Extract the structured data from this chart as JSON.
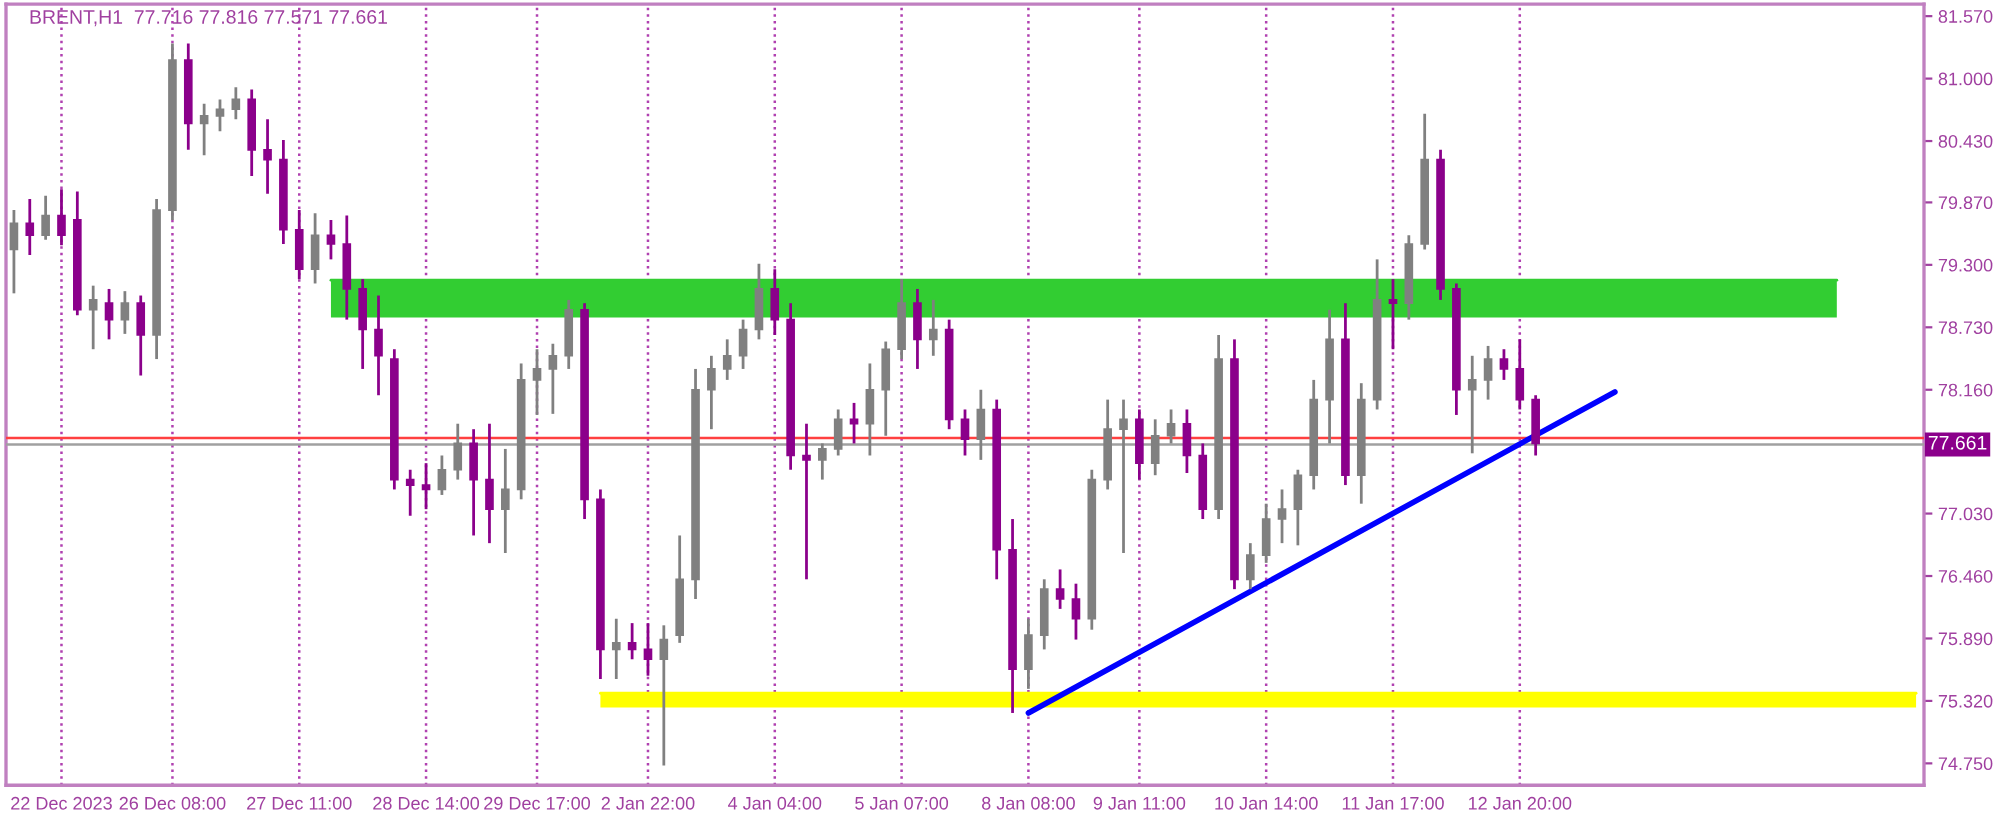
{
  "chart_data": {
    "type": "candlestick",
    "title": "BRENT,H1  77.716 77.816 77.571 77.661",
    "categories": [
      null,
      null,
      null,
      "22 Dec 2023",
      null,
      null,
      null,
      null,
      null,
      null,
      "26 Dec 08:00",
      null,
      null,
      null,
      null,
      null,
      null,
      null,
      "27 Dec 11:00",
      null,
      null,
      null,
      null,
      null,
      null,
      null,
      "28 Dec 14:00",
      null,
      null,
      null,
      null,
      null,
      null,
      "29 Dec 17:00",
      null,
      null,
      null,
      null,
      null,
      null,
      "2 Jan 22:00",
      null,
      null,
      null,
      null,
      null,
      null,
      null,
      "4 Jan 04:00",
      null,
      null,
      null,
      null,
      null,
      null,
      null,
      "5 Jan 07:00",
      null,
      null,
      null,
      null,
      null,
      null,
      null,
      "8 Jan 08:00",
      null,
      null,
      null,
      null,
      null,
      null,
      "9 Jan 11:00",
      null,
      null,
      null,
      null,
      null,
      null,
      null,
      "10 Jan 14:00",
      null,
      null,
      null,
      null,
      null,
      null,
      null,
      "11 Jan 17:00",
      null,
      null,
      null,
      null,
      null,
      null,
      null,
      "12 Jan 20:00",
      null,
      null,
      null,
      null,
      null,
      null,
      null,
      null,
      null,
      null,
      null,
      null,
      null,
      null,
      null,
      null,
      null,
      null,
      null,
      null,
      null,
      null,
      null,
      null,
      null
    ],
    "ohlc": [
      [
        79.44,
        79.8,
        79.04,
        79.68
      ],
      [
        79.68,
        79.9,
        79.39,
        79.57
      ],
      [
        79.57,
        79.93,
        79.53,
        79.75
      ],
      [
        79.75,
        79.99,
        79.48,
        79.57
      ],
      [
        79.71,
        79.97,
        78.84,
        78.89
      ],
      [
        78.89,
        79.11,
        78.53,
        78.98
      ],
      [
        78.95,
        79.08,
        78.62,
        78.8
      ],
      [
        78.8,
        79.06,
        78.67,
        78.95
      ],
      [
        78.95,
        79.02,
        78.29,
        78.66
      ],
      [
        78.66,
        79.9,
        78.44,
        79.8
      ],
      [
        79.8,
        81.32,
        79.71,
        81.17
      ],
      [
        81.17,
        81.32,
        80.35,
        80.59
      ],
      [
        80.59,
        80.77,
        80.3,
        80.66
      ],
      [
        80.66,
        80.81,
        80.52,
        80.72
      ],
      [
        80.72,
        80.92,
        80.63,
        80.81
      ],
      [
        80.81,
        80.9,
        80.11,
        80.35
      ],
      [
        80.35,
        80.63,
        79.95,
        80.26
      ],
      [
        80.26,
        80.44,
        79.49,
        79.62
      ],
      [
        79.62,
        79.8,
        79.17,
        79.26
      ],
      [
        79.26,
        79.77,
        79.13,
        79.57
      ],
      [
        79.57,
        79.71,
        79.35,
        79.49
      ],
      [
        79.49,
        79.75,
        78.8,
        79.08
      ],
      [
        79.08,
        79.17,
        78.35,
        78.71
      ],
      [
        78.71,
        79.02,
        78.11,
        78.47
      ],
      [
        78.44,
        78.53,
        77.25,
        77.34
      ],
      [
        77.34,
        77.43,
        77.01,
        77.29
      ],
      [
        77.29,
        77.49,
        77.07,
        77.25
      ],
      [
        77.25,
        77.56,
        77.2,
        77.43
      ],
      [
        77.43,
        77.85,
        77.34,
        77.67
      ],
      [
        77.67,
        77.8,
        76.83,
        77.34
      ],
      [
        77.34,
        77.85,
        76.76,
        77.07
      ],
      [
        77.07,
        77.62,
        76.67,
        77.25
      ],
      [
        77.25,
        78.4,
        77.16,
        78.25
      ],
      [
        78.25,
        78.53,
        77.93,
        78.35
      ],
      [
        78.35,
        78.58,
        77.94,
        78.47
      ],
      [
        78.47,
        78.98,
        78.35,
        78.89
      ],
      [
        78.89,
        78.95,
        76.98,
        77.16
      ],
      [
        77.16,
        77.25,
        75.52,
        75.79
      ],
      [
        75.79,
        76.07,
        75.52,
        75.85
      ],
      [
        75.85,
        76.03,
        75.7,
        75.79
      ],
      [
        75.79,
        76.03,
        75.55,
        75.7
      ],
      [
        75.7,
        76.01,
        74.73,
        75.88
      ],
      [
        75.92,
        76.83,
        75.85,
        76.43
      ],
      [
        76.43,
        78.35,
        76.25,
        78.16
      ],
      [
        78.16,
        78.47,
        77.8,
        78.35
      ],
      [
        78.35,
        78.62,
        78.25,
        78.47
      ],
      [
        78.47,
        78.8,
        78.35,
        78.71
      ],
      [
        78.71,
        79.31,
        78.62,
        79.08
      ],
      [
        79.08,
        79.26,
        78.66,
        78.8
      ],
      [
        78.8,
        78.95,
        77.43,
        77.56
      ],
      [
        77.56,
        77.85,
        76.43,
        77.52
      ],
      [
        77.52,
        77.67,
        77.34,
        77.62
      ],
      [
        77.62,
        77.98,
        77.56,
        77.89
      ],
      [
        77.89,
        78.04,
        77.67,
        77.85
      ],
      [
        77.85,
        78.4,
        77.56,
        78.16
      ],
      [
        78.16,
        78.6,
        77.74,
        78.53
      ],
      [
        78.53,
        79.17,
        78.44,
        78.95
      ],
      [
        78.95,
        79.08,
        78.35,
        78.62
      ],
      [
        78.62,
        78.98,
        78.47,
        78.71
      ],
      [
        78.71,
        78.8,
        77.8,
        77.89
      ],
      [
        77.89,
        77.98,
        77.56,
        77.71
      ],
      [
        77.71,
        78.16,
        77.52,
        77.98
      ],
      [
        77.98,
        78.07,
        76.43,
        76.7
      ],
      [
        76.7,
        76.98,
        75.21,
        75.61
      ],
      [
        75.61,
        76.07,
        75.43,
        75.92
      ],
      [
        75.92,
        76.43,
        75.79,
        76.34
      ],
      [
        76.34,
        76.52,
        76.16,
        76.25
      ],
      [
        76.25,
        76.39,
        75.88,
        76.07
      ],
      [
        76.07,
        77.43,
        75.97,
        77.34
      ],
      [
        77.34,
        78.07,
        77.25,
        77.8
      ],
      [
        77.8,
        78.07,
        76.67,
        77.89
      ],
      [
        77.89,
        77.98,
        77.34,
        77.49
      ],
      [
        77.49,
        77.89,
        77.38,
        77.74
      ],
      [
        77.74,
        77.98,
        77.67,
        77.85
      ],
      [
        77.85,
        77.98,
        77.4,
        77.56
      ],
      [
        77.56,
        77.67,
        76.98,
        77.07
      ],
      [
        77.07,
        78.66,
        76.98,
        78.44
      ],
      [
        78.44,
        78.62,
        76.34,
        76.43
      ],
      [
        76.43,
        76.76,
        76.34,
        76.65
      ],
      [
        76.65,
        77.12,
        76.58,
        76.98
      ],
      [
        76.98,
        77.25,
        76.76,
        77.07
      ],
      [
        77.07,
        77.43,
        76.74,
        77.38
      ],
      [
        77.38,
        78.25,
        77.25,
        78.07
      ],
      [
        78.07,
        78.89,
        77.67,
        78.62
      ],
      [
        78.62,
        78.95,
        77.29,
        77.38
      ],
      [
        77.38,
        78.22,
        77.12,
        78.07
      ],
      [
        78.07,
        79.35,
        77.98,
        78.98
      ],
      [
        78.98,
        79.17,
        78.53,
        78.95
      ],
      [
        78.95,
        79.57,
        78.8,
        79.49
      ],
      [
        79.49,
        80.68,
        79.44,
        80.26
      ],
      [
        80.26,
        80.35,
        78.98,
        79.08
      ],
      [
        79.08,
        79.13,
        77.93,
        78.16
      ],
      [
        78.16,
        78.47,
        77.58,
        78.25
      ],
      [
        78.25,
        78.56,
        78.07,
        78.44
      ],
      [
        78.44,
        78.53,
        78.25,
        78.35
      ],
      [
        78.35,
        78.62,
        77.98,
        78.07
      ],
      [
        78.07,
        78.11,
        77.56,
        77.67
      ],
      null,
      null,
      null,
      null,
      null,
      null,
      null,
      null,
      null,
      null,
      null,
      null,
      null,
      null,
      null,
      null,
      null,
      null,
      null,
      null,
      null,
      null,
      null,
      null
    ],
    "colors": [
      "#808080",
      "#8b008b",
      "#808080",
      "#8b008b",
      "#8b008b",
      "#808080",
      "#8b008b",
      "#808080",
      "#8b008b",
      "#808080",
      "#808080",
      "#8b008b",
      "#808080",
      "#808080",
      "#808080",
      "#8b008b",
      "#8b008b",
      "#8b008b",
      "#8b008b",
      "#808080",
      "#8b008b",
      "#8b008b",
      "#8b008b",
      "#8b008b",
      "#8b008b",
      "#8b008b",
      "#8b008b",
      "#808080",
      "#808080",
      "#8b008b",
      "#8b008b",
      "#808080",
      "#808080",
      "#808080",
      "#808080",
      "#808080",
      "#8b008b",
      "#8b008b",
      "#808080",
      "#8b008b",
      "#8b008b",
      "#808080",
      "#808080",
      "#808080",
      "#808080",
      "#808080",
      "#808080",
      "#808080",
      "#8b008b",
      "#8b008b",
      "#8b008b",
      "#808080",
      "#808080",
      "#8b008b",
      "#808080",
      "#808080",
      "#808080",
      "#8b008b",
      "#808080",
      "#8b008b",
      "#8b008b",
      "#808080",
      "#8b008b",
      "#8b008b",
      "#808080",
      "#808080",
      "#8b008b",
      "#8b008b",
      "#808080",
      "#808080",
      "#808080",
      "#8b008b",
      "#808080",
      "#808080",
      "#8b008b",
      "#8b008b",
      "#808080",
      "#8b008b",
      "#808080",
      "#808080",
      "#808080",
      "#808080",
      "#808080",
      "#808080",
      "#8b008b",
      "#808080",
      "#808080",
      "#8b008b",
      "#808080",
      "#808080",
      "#8b008b",
      "#8b008b",
      "#808080",
      "#808080",
      "#8b008b",
      "#8b008b",
      "#8b008b",
      null,
      null,
      null,
      null,
      null,
      null,
      null,
      null,
      null,
      null,
      null,
      null,
      null,
      null,
      null,
      null,
      null,
      null,
      null,
      null,
      null,
      null,
      null,
      null
    ],
    "series": [
      {
        "type": "line",
        "color": "#32cd32",
        "upper": [
          null,
          null,
          null,
          null,
          null,
          null,
          null,
          null,
          null,
          null,
          null,
          null,
          null,
          null,
          null,
          null,
          null,
          null,
          null,
          null,
          79.16,
          null,
          null,
          null,
          null,
          null,
          null,
          null,
          null,
          null,
          null,
          null,
          null,
          null,
          null,
          null,
          null,
          null,
          null,
          null,
          null,
          null,
          null,
          null,
          null,
          null,
          null,
          null,
          null,
          null,
          null,
          null,
          null,
          null,
          null,
          null,
          null,
          null,
          null,
          null,
          null,
          null,
          null,
          null,
          null,
          null,
          null,
          null,
          null,
          null,
          null,
          null,
          null,
          null,
          null,
          null,
          null,
          null,
          null,
          null,
          null,
          null,
          null,
          null,
          null,
          null,
          null,
          null,
          null,
          null,
          null,
          null,
          null,
          null,
          null,
          null,
          null,
          null,
          null,
          null,
          null,
          null,
          null,
          null,
          null,
          null,
          null,
          null,
          null,
          null,
          null,
          null,
          null,
          null,
          null,
          79.16,
          null,
          null,
          null,
          null,
          null
        ],
        "values": [
          null,
          null,
          null,
          null,
          null,
          null,
          null,
          null,
          null,
          null,
          null,
          null,
          null,
          null,
          null,
          null,
          null,
          null,
          null,
          null,
          79.16,
          null,
          null,
          null,
          null,
          null,
          null,
          null,
          null,
          null,
          null,
          null,
          null,
          null,
          null,
          null,
          null,
          null,
          null,
          null,
          null,
          null,
          null,
          null,
          null,
          null,
          null,
          null,
          null,
          null,
          null,
          null,
          null,
          null,
          null,
          null,
          null,
          null,
          null,
          null,
          null,
          null,
          null,
          null,
          null,
          null,
          null,
          null,
          null,
          null,
          null,
          null,
          null,
          null,
          null,
          null,
          null,
          null,
          null,
          null,
          null,
          null,
          null,
          null,
          null,
          null,
          null,
          null,
          null,
          null,
          null,
          null,
          null,
          null,
          null,
          null,
          null,
          null,
          null,
          null,
          null,
          null,
          null,
          null,
          null,
          null,
          null,
          null,
          null,
          null,
          null,
          null,
          null,
          null,
          null,
          79.16,
          null,
          null,
          null,
          null,
          null
        ],
        "lower": [
          null,
          null,
          null,
          null,
          null,
          null,
          null,
          null,
          null,
          null,
          null,
          null,
          null,
          null,
          null,
          null,
          null,
          null,
          null,
          null,
          78.82,
          null,
          null,
          null,
          null,
          null,
          null,
          null,
          null,
          null,
          null,
          null,
          null,
          null,
          null,
          null,
          null,
          null,
          null,
          null,
          null,
          null,
          null,
          null,
          null,
          null,
          null,
          null,
          null,
          null,
          null,
          null,
          null,
          null,
          null,
          null,
          null,
          null,
          null,
          null,
          null,
          null,
          null,
          null,
          null,
          null,
          null,
          null,
          null,
          null,
          null,
          null,
          null,
          null,
          null,
          null,
          null,
          null,
          null,
          null,
          null,
          null,
          null,
          null,
          null,
          null,
          null,
          null,
          null,
          null,
          null,
          null,
          null,
          null,
          null,
          null,
          null,
          null,
          null,
          null,
          null,
          null,
          null,
          null,
          null,
          null,
          null,
          null,
          null,
          null,
          null,
          null,
          null,
          null,
          null,
          78.82,
          null,
          null,
          null,
          null,
          null
        ]
      },
      {
        "type": "line",
        "color": "#ffff00",
        "upper": [
          null,
          null,
          null,
          null,
          null,
          null,
          null,
          null,
          null,
          null,
          null,
          null,
          null,
          null,
          null,
          null,
          null,
          null,
          null,
          null,
          null,
          null,
          null,
          null,
          null,
          null,
          null,
          null,
          null,
          null,
          null,
          null,
          null,
          null,
          null,
          null,
          null,
          75.39,
          null,
          null,
          null,
          null,
          null,
          null,
          null,
          null,
          null,
          null,
          null,
          null,
          null,
          null,
          null,
          null,
          null,
          null,
          null,
          null,
          null,
          null,
          null,
          null,
          null,
          null,
          null,
          null,
          null,
          null,
          null,
          null,
          null,
          null,
          null,
          null,
          null,
          null,
          null,
          null,
          null,
          null,
          null,
          null,
          null,
          null,
          null,
          null,
          null,
          null,
          null,
          null,
          null,
          null,
          null,
          null,
          null,
          null,
          null,
          null,
          null,
          null,
          null,
          null,
          null,
          null,
          null,
          null,
          null,
          null,
          null,
          null,
          null,
          null,
          null,
          null,
          null,
          null,
          null,
          null,
          null,
          null,
          75.39
        ],
        "values": [
          null,
          null,
          null,
          null,
          null,
          null,
          null,
          null,
          null,
          null,
          null,
          null,
          null,
          null,
          null,
          null,
          null,
          null,
          null,
          null,
          null,
          null,
          null,
          null,
          null,
          null,
          null,
          null,
          null,
          null,
          null,
          null,
          null,
          null,
          null,
          null,
          null,
          75.39,
          null,
          null,
          null,
          null,
          null,
          null,
          null,
          null,
          null,
          null,
          null,
          null,
          null,
          null,
          null,
          null,
          null,
          null,
          null,
          null,
          null,
          null,
          null,
          null,
          null,
          null,
          null,
          null,
          null,
          null,
          null,
          null,
          null,
          null,
          null,
          null,
          null,
          null,
          null,
          null,
          null,
          null,
          null,
          null,
          null,
          null,
          null,
          null,
          null,
          null,
          null,
          null,
          null,
          null,
          null,
          null,
          null,
          null,
          null,
          null,
          null,
          null,
          null,
          null,
          null,
          null,
          null,
          null,
          null,
          null,
          null,
          null,
          null,
          null,
          null,
          null,
          null,
          null,
          null,
          null,
          null,
          null,
          75.39
        ],
        "lower": [
          null,
          null,
          null,
          null,
          null,
          null,
          null,
          null,
          null,
          null,
          null,
          null,
          null,
          null,
          null,
          null,
          null,
          null,
          null,
          null,
          null,
          null,
          null,
          null,
          null,
          null,
          null,
          null,
          null,
          null,
          null,
          null,
          null,
          null,
          null,
          null,
          null,
          75.26,
          null,
          null,
          null,
          null,
          null,
          null,
          null,
          null,
          null,
          null,
          null,
          null,
          null,
          null,
          null,
          null,
          null,
          null,
          null,
          null,
          null,
          null,
          null,
          null,
          null,
          null,
          null,
          null,
          null,
          null,
          null,
          null,
          null,
          null,
          null,
          null,
          null,
          null,
          null,
          null,
          null,
          null,
          null,
          null,
          null,
          null,
          null,
          null,
          null,
          null,
          null,
          null,
          null,
          null,
          null,
          null,
          null,
          null,
          null,
          null,
          null,
          null,
          null,
          null,
          null,
          null,
          null,
          null,
          null,
          null,
          null,
          null,
          null,
          null,
          null,
          null,
          null,
          null,
          null,
          null,
          null,
          null,
          75.26
        ]
      },
      {
        "type": "line",
        "color": "#0000ff",
        "values": [
          null,
          null,
          null,
          null,
          null,
          null,
          null,
          null,
          null,
          null,
          null,
          null,
          null,
          null,
          null,
          null,
          null,
          null,
          null,
          null,
          null,
          null,
          null,
          null,
          null,
          null,
          null,
          null,
          null,
          null,
          null,
          null,
          null,
          null,
          null,
          null,
          null,
          null,
          null,
          null,
          null,
          null,
          null,
          null,
          null,
          null,
          null,
          null,
          null,
          null,
          null,
          null,
          null,
          null,
          null,
          null,
          null,
          null,
          null,
          null,
          null,
          null,
          null,
          null,
          75.21,
          null,
          null,
          null,
          null,
          null,
          null,
          null,
          null,
          null,
          null,
          null,
          null,
          null,
          null,
          null,
          null,
          null,
          null,
          null,
          null,
          null,
          null,
          null,
          null,
          null,
          null,
          null,
          null,
          null,
          null,
          null,
          null,
          null,
          null,
          null,
          null,
          78.14,
          null,
          null,
          null,
          null,
          null,
          null,
          null,
          null,
          null,
          null,
          null,
          null,
          null,
          null,
          null,
          null,
          null,
          null,
          null
        ]
      }
    ],
    "ref_lines": [
      {
        "axis": "y",
        "value": 77.72,
        "color": "#ff4040",
        "line_style": "solid"
      },
      {
        "axis": "y",
        "value": 77.661,
        "label": "77.661",
        "color": "#a0a0a0",
        "line_style": "solid"
      }
    ],
    "ylim": [
      74.55,
      81.68
    ],
    "yticks": [
      {
        "value": 74.75,
        "label": "74.750"
      },
      {
        "value": 75.32,
        "label": "75.320"
      },
      {
        "value": 75.89,
        "label": "75.890"
      },
      {
        "value": 76.46,
        "label": "76.460"
      },
      {
        "value": 77.03,
        "label": "77.030"
      },
      {
        "value": 78.16,
        "label": "78.160"
      },
      {
        "value": 78.73,
        "label": "78.730"
      },
      {
        "value": 79.3,
        "label": "79.300"
      },
      {
        "value": 79.87,
        "label": "79.870"
      },
      {
        "value": 80.43,
        "label": "80.430"
      },
      {
        "value": 81.0,
        "label": "81.000"
      },
      {
        "value": 81.57,
        "label": "81.570"
      }
    ],
    "grid": "x"
  }
}
